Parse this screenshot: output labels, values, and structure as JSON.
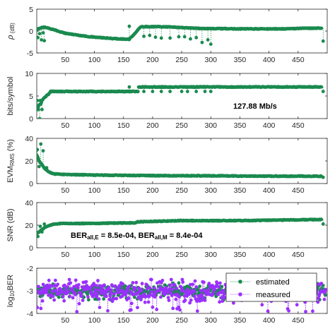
{
  "colors": {
    "estimated": "#1a8a4e",
    "measured": "#9b30ff",
    "axis": "#262626"
  },
  "chart_data": [
    {
      "type": "scatter",
      "ylabel_parts": [
        "ρ",
        " (dB)"
      ],
      "xlim": [
        1,
        500
      ],
      "ylim": [
        -5,
        5
      ],
      "yticks": [
        -5,
        0,
        5
      ],
      "xticks": [
        50,
        100,
        150,
        200,
        250,
        300,
        350,
        400,
        450
      ],
      "trend": {
        "x": [
          1,
          5,
          10,
          15,
          20,
          30,
          50,
          80,
          100,
          130,
          160,
          180,
          220,
          280,
          350,
          420,
          490
        ],
        "y": [
          0.3,
          0.6,
          0.8,
          0.9,
          0.7,
          0.3,
          -0.5,
          -1.1,
          -1.4,
          -1.7,
          -1.9,
          1.0,
          1.0,
          0.6,
          0.5,
          0.5,
          0.7
        ]
      },
      "outliers": {
        "x": [
          3,
          6,
          9,
          12,
          14,
          160,
          185,
          195,
          205,
          215,
          230,
          245,
          255,
          265,
          275,
          285,
          295,
          300,
          493
        ],
        "y": [
          -1.5,
          -0.6,
          -2.0,
          -0.4,
          -2.2,
          1.1,
          -1.2,
          -1.0,
          -1.4,
          -1.6,
          -1.6,
          -1.3,
          -1.3,
          -1.8,
          -1.5,
          -2.6,
          -2.0,
          -3.0,
          -2.3
        ]
      }
    },
    {
      "type": "scatter",
      "ylabel_parts": [
        "bits/symbol"
      ],
      "annotation": "127.88 Mb/s",
      "xlim": [
        1,
        500
      ],
      "ylim": [
        0,
        10
      ],
      "yticks": [
        0,
        5,
        10
      ],
      "xticks": [
        50,
        100,
        150,
        200,
        250,
        300,
        350,
        400,
        450
      ],
      "trend": {
        "x": [
          1,
          3,
          5,
          8,
          10,
          13,
          17,
          22,
          25,
          175,
          176,
          490
        ],
        "y": [
          2.0,
          2.5,
          3.0,
          3.2,
          4.0,
          4.5,
          5.0,
          5.5,
          6.0,
          6.0,
          7.0,
          7.0
        ]
      },
      "outliers": {
        "x": [
          2,
          4,
          6,
          7,
          10,
          160,
          185,
          200,
          215,
          230,
          250,
          260,
          275,
          290,
          300,
          493
        ],
        "y": [
          4.0,
          2.0,
          0.0,
          4.0,
          2.0,
          7.0,
          6.0,
          6.0,
          6.0,
          6.0,
          6.0,
          6.0,
          6.0,
          6.0,
          6.0,
          6.0
        ]
      }
    },
    {
      "type": "scatter",
      "ylabel_parts": [
        "EVM",
        "RMS",
        " (%)"
      ],
      "xlim": [
        1,
        500
      ],
      "ylim": [
        0,
        40
      ],
      "yticks": [
        0,
        20,
        40
      ],
      "xticks": [
        50,
        100,
        150,
        200,
        250,
        300,
        350,
        400,
        450
      ],
      "trend": {
        "x": [
          1,
          3,
          5,
          8,
          11,
          15,
          20,
          25,
          30,
          50,
          100,
          200,
          300,
          400,
          490
        ],
        "y": [
          25,
          23,
          20,
          18,
          16,
          13,
          11,
          9.5,
          8.5,
          8.0,
          7.5,
          7.0,
          6.8,
          6.5,
          6.5
        ]
      },
      "outliers": {
        "x": [
          2,
          5,
          8,
          12,
          18,
          493
        ],
        "y": [
          30,
          15,
          35,
          29,
          14,
          5.5
        ]
      }
    },
    {
      "type": "scatter",
      "ylabel_parts": [
        "SNR (dB)"
      ],
      "annotation_parts": [
        "BER",
        "all,E",
        " = 8.5e-04, BER",
        "all,M",
        " = 8.4e-04"
      ],
      "xlim": [
        1,
        500
      ],
      "ylim": [
        0,
        40
      ],
      "yticks": [
        0,
        20,
        40
      ],
      "xticks": [
        50,
        100,
        150,
        200,
        250,
        300,
        350,
        400,
        450
      ],
      "trend": {
        "x": [
          1,
          5,
          10,
          15,
          20,
          25,
          30,
          50,
          100,
          150,
          170,
          175,
          250,
          350,
          490
        ],
        "y": [
          13,
          14,
          16,
          18,
          19,
          20,
          21,
          21.5,
          21.5,
          22,
          22,
          23,
          24,
          24,
          25
        ]
      },
      "outliers": {
        "x": [
          3,
          7,
          10,
          14,
          493
        ],
        "y": [
          10,
          19,
          14,
          21,
          21
        ]
      }
    },
    {
      "type": "scatter",
      "ylabel_parts": [
        "log",
        "10",
        "BER"
      ],
      "xlim": [
        1,
        500
      ],
      "ylim": [
        -4,
        -2
      ],
      "yticks": [
        -4,
        -3,
        -2
      ],
      "xticks": [
        50,
        100,
        150,
        200,
        250,
        300,
        350,
        400,
        450
      ],
      "legend": {
        "entries": [
          "estimated",
          "measured"
        ],
        "loc": "upper right"
      },
      "series": [
        {
          "name": "estimated",
          "mean": -3.0,
          "spread": 0.16,
          "low": -3.45,
          "high": -2.65
        },
        {
          "name": "measured",
          "mean": -3.0,
          "spread": 0.3,
          "low": -3.95,
          "high": -2.5
        }
      ]
    }
  ]
}
